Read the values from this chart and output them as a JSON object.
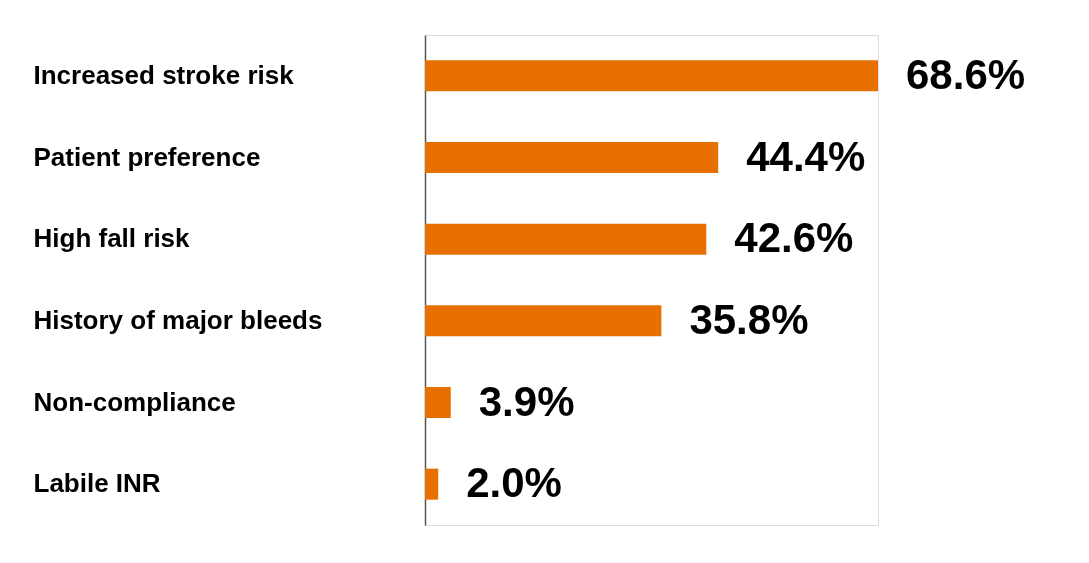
{
  "chart_data": {
    "type": "bar",
    "orientation": "horizontal",
    "categories": [
      "Increased stroke risk",
      "Patient preference",
      "High fall risk",
      "History of major bleeds",
      "Non-compliance",
      "Labile INR"
    ],
    "values": [
      68.6,
      44.4,
      42.6,
      35.8,
      3.9,
      2.0
    ],
    "value_labels": [
      "68.6%",
      "44.4%",
      "42.6%",
      "35.8%",
      "3.9%",
      "2.0%"
    ],
    "color": "#e87000"
  }
}
